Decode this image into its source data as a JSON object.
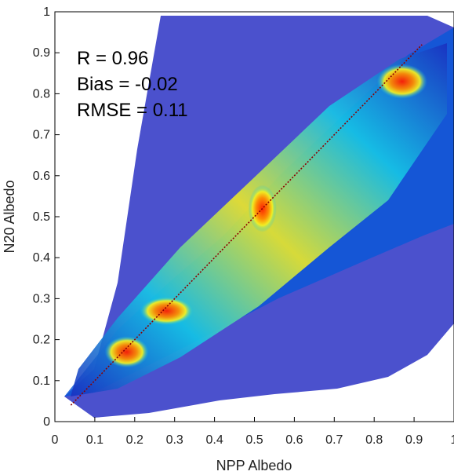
{
  "chart_data": {
    "type": "heatmap",
    "xlabel": "NPP  Albedo",
    "ylabel": "N20  Albedo",
    "xlim": [
      0,
      1
    ],
    "ylim": [
      0,
      1
    ],
    "x_ticks": [
      "0",
      "0.1",
      "0.2",
      "0.3",
      "0.4",
      "0.5",
      "0.6",
      "0.7",
      "0.8",
      "0.9",
      "1"
    ],
    "y_ticks": [
      "0",
      "0.1",
      "0.2",
      "0.3",
      "0.4",
      "0.5",
      "0.6",
      "0.7",
      "0.8",
      "0.9",
      "1"
    ],
    "annotations": [
      "R = 0.96",
      "Bias = -0.02",
      "RMSE = 0.11"
    ],
    "density_peaks": [
      {
        "x": 0.18,
        "y": 0.17
      },
      {
        "x": 0.28,
        "y": 0.27
      },
      {
        "x": 0.52,
        "y": 0.52
      },
      {
        "x": 0.87,
        "y": 0.83
      }
    ],
    "reference_line": {
      "x": [
        0.04,
        0.92
      ],
      "y": [
        0.04,
        0.92
      ]
    },
    "grid": false,
    "colors": {
      "low_density": "#1717b8",
      "mid_density": "#12c8e8",
      "high_density": "#f3ef22",
      "peak_density": "#e11300",
      "reference_line": "#8b0000"
    }
  }
}
